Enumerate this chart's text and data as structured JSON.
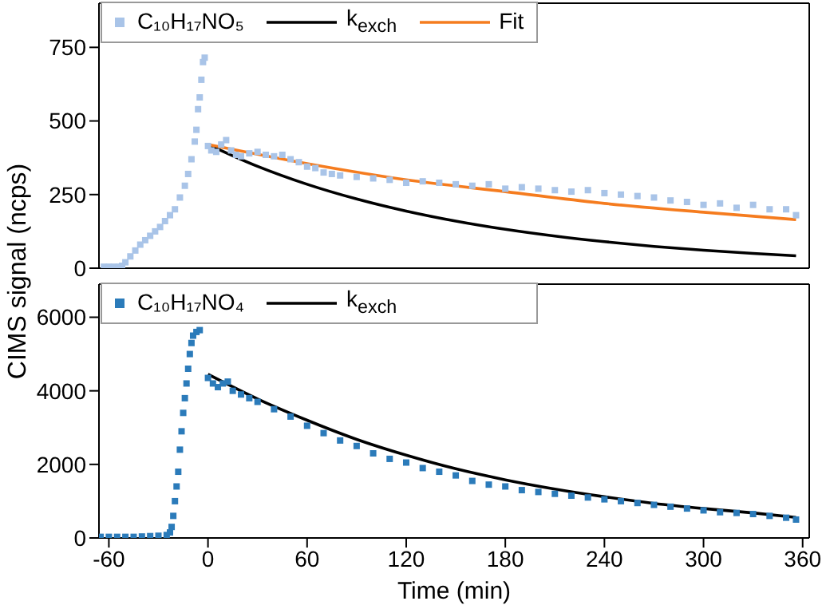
{
  "chart_data": [
    {
      "type": "scatter",
      "ylabel": "CIMS signal (ncps)",
      "xlim": [
        -66,
        364
      ],
      "xticks": [
        -60,
        0,
        60,
        120,
        180,
        240,
        300,
        360
      ],
      "ylim": [
        0,
        900
      ],
      "yticks": [
        0,
        250,
        500,
        750
      ],
      "tick_labels": "y",
      "legend": "top left",
      "marker": "square",
      "series": [
        {
          "name": "C₁₀H₁₇NO₅",
          "color": "#a9c4e8",
          "x": [
            -63,
            -60,
            -57,
            -54,
            -52,
            -50,
            -47,
            -44,
            -41,
            -38,
            -35,
            -32,
            -29,
            -26,
            -23,
            -20,
            -17,
            -14,
            -12,
            -10,
            -8,
            -7,
            -6,
            -5,
            -4,
            -3,
            -2,
            0,
            2,
            5,
            8,
            11,
            14,
            17,
            20,
            25,
            30,
            35,
            40,
            45,
            50,
            55,
            60,
            65,
            70,
            75,
            80,
            90,
            100,
            110,
            120,
            130,
            140,
            150,
            160,
            170,
            180,
            190,
            200,
            210,
            220,
            230,
            240,
            250,
            260,
            270,
            280,
            290,
            300,
            310,
            320,
            330,
            340,
            350,
            356
          ],
          "values": [
            5,
            5,
            5,
            5,
            8,
            20,
            40,
            60,
            80,
            95,
            110,
            125,
            140,
            160,
            180,
            200,
            240,
            280,
            320,
            370,
            430,
            470,
            540,
            580,
            640,
            700,
            715,
            415,
            400,
            395,
            420,
            435,
            400,
            385,
            380,
            390,
            395,
            385,
            380,
            385,
            370,
            360,
            345,
            340,
            325,
            320,
            315,
            310,
            305,
            300,
            290,
            295,
            290,
            285,
            280,
            285,
            270,
            275,
            270,
            265,
            260,
            265,
            255,
            250,
            245,
            240,
            230,
            225,
            215,
            220,
            205,
            215,
            200,
            200,
            180
          ]
        },
        {
          "name": "k$_{exch}$",
          "type": "line",
          "marker": "none",
          "color": "#000000",
          "x": [
            0,
            30,
            60,
            90,
            120,
            150,
            180,
            210,
            240,
            270,
            300,
            330,
            356
          ],
          "values": [
            420,
            346,
            285,
            235,
            194,
            160,
            132,
            109,
            90,
            74,
            61,
            50,
            42
          ]
        },
        {
          "name": "Fit",
          "type": "line",
          "marker": "none",
          "color": "#f57c1f",
          "x": [
            0,
            60,
            120,
            180,
            240,
            300,
            356
          ],
          "values": [
            420,
            355,
            300,
            260,
            220,
            190,
            165
          ]
        }
      ]
    },
    {
      "type": "scatter",
      "xlabel": "Time (min)",
      "xlim": [
        -66,
        364
      ],
      "xticks": [
        -60,
        0,
        60,
        120,
        180,
        240,
        300,
        360
      ],
      "ylim": [
        0,
        6900
      ],
      "yticks": [
        0,
        2000,
        4000,
        6000
      ],
      "legend": "top left",
      "marker": "square",
      "series": [
        {
          "name": "C₁₀H₁₇NO₄",
          "color": "#2b7bba",
          "x": [
            -65,
            -60,
            -55,
            -50,
            -45,
            -40,
            -35,
            -30,
            -25,
            -23,
            -22,
            -21,
            -20,
            -19,
            -18,
            -17,
            -16,
            -15,
            -14,
            -13,
            -12,
            -11,
            -10,
            -9,
            -7,
            -5,
            0,
            3,
            6,
            9,
            12,
            15,
            20,
            25,
            30,
            40,
            50,
            60,
            70,
            80,
            90,
            100,
            110,
            120,
            130,
            140,
            150,
            160,
            170,
            180,
            190,
            200,
            210,
            220,
            230,
            240,
            250,
            260,
            270,
            280,
            290,
            300,
            310,
            320,
            330,
            340,
            350,
            356
          ],
          "values": [
            30,
            30,
            30,
            30,
            30,
            40,
            50,
            60,
            80,
            150,
            300,
            600,
            1000,
            1400,
            1800,
            2400,
            2900,
            3400,
            3800,
            4200,
            4600,
            5000,
            5300,
            5500,
            5600,
            5650,
            4350,
            4200,
            4100,
            4200,
            4250,
            4000,
            3900,
            3800,
            3700,
            3500,
            3300,
            3050,
            2850,
            2650,
            2500,
            2300,
            2150,
            2050,
            1900,
            1800,
            1700,
            1550,
            1450,
            1400,
            1300,
            1250,
            1200,
            1150,
            1100,
            1050,
            1000,
            950,
            900,
            850,
            800,
            750,
            700,
            680,
            650,
            600,
            550,
            500
          ]
        },
        {
          "name": "k$_{exch}$",
          "type": "line",
          "marker": "none",
          "color": "#000000",
          "x": [
            0,
            30,
            60,
            90,
            120,
            150,
            180,
            210,
            240,
            270,
            300,
            330,
            356
          ],
          "values": [
            4450,
            3780,
            3200,
            2680,
            2250,
            1880,
            1580,
            1330,
            1120,
            940,
            800,
            680,
            560
          ]
        }
      ]
    }
  ]
}
